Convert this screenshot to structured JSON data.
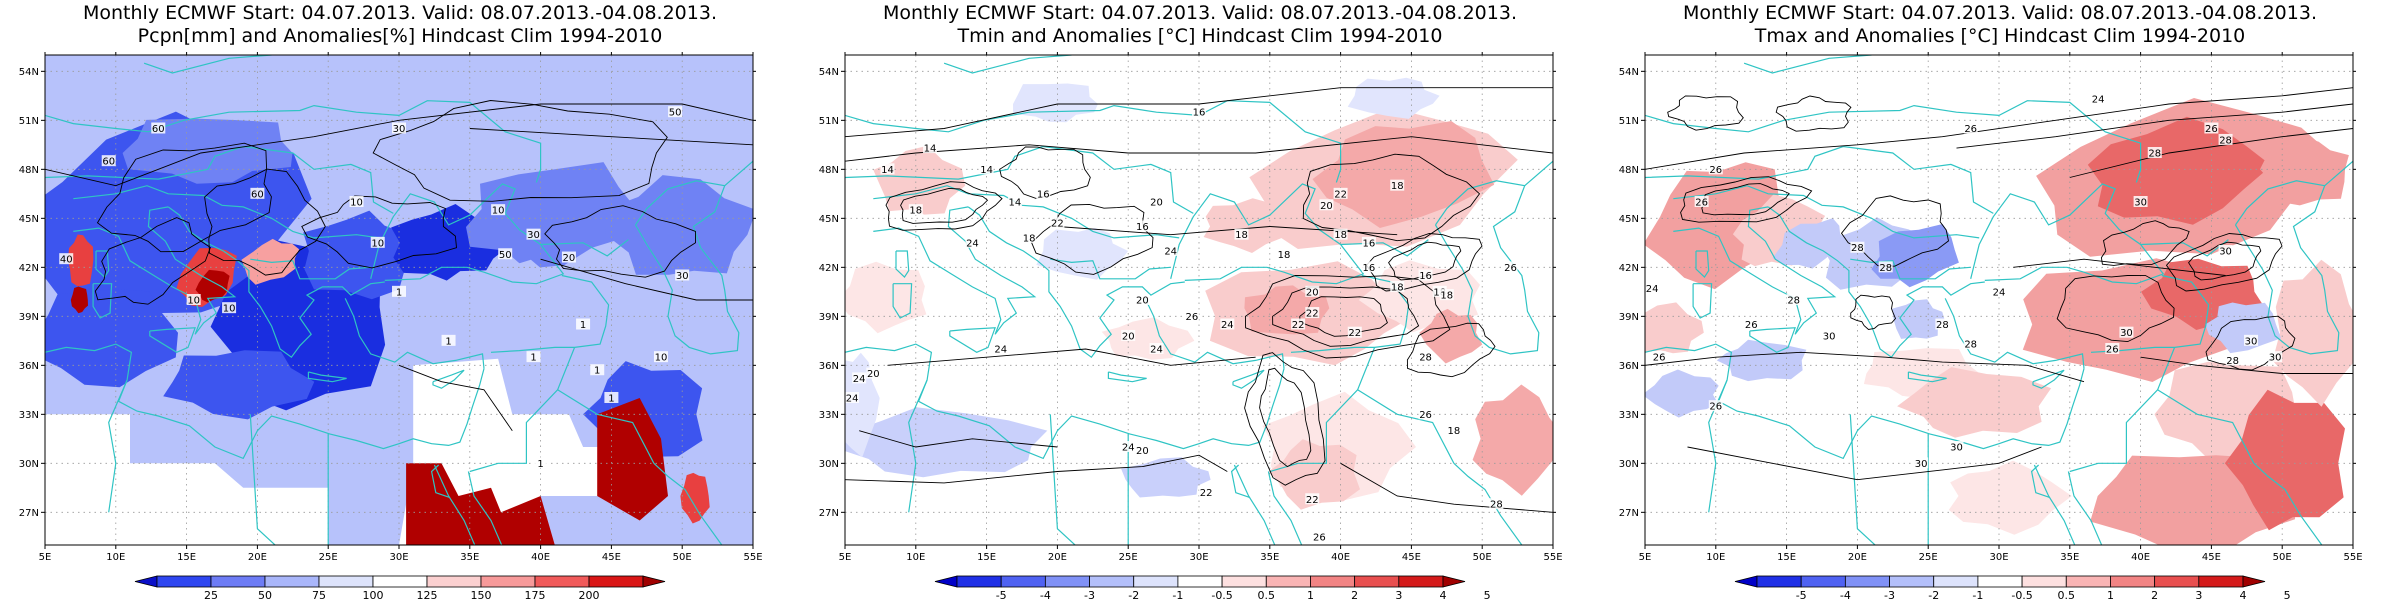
{
  "panels": [
    {
      "title_line1": "Monthly ECMWF Start: 04.07.2013. Valid: 08.07.2013.-04.08.2013.",
      "title_line2": "Pcpn[mm] and Anomalies[%] Hindcast Clim 1994-2010",
      "colorbar": {
        "ticks": [
          "25",
          "50",
          "75",
          "100",
          "125",
          "150",
          "175",
          "200"
        ],
        "colors": [
          "#0a0fc8",
          "#2e46f0",
          "#6d7cf5",
          "#a9b6fa",
          "#dde3fb",
          "#ffffff",
          "#fbd0d0",
          "#f79a9a",
          "#f05a5a",
          "#d91616",
          "#a00000"
        ]
      },
      "contour_labels": [
        "60",
        "50",
        "30",
        "60",
        "60",
        "10",
        "10",
        "10",
        "30",
        "20",
        "50",
        "30",
        "40",
        "10",
        "10",
        "1",
        "1",
        "1",
        "1",
        "1",
        "10",
        "1",
        "1"
      ],
      "anomaly_colors": [
        "#1a2ee0",
        "#3d55ef",
        "#6f82f4",
        "#b7c2fb",
        "#ffffff",
        "#b00000",
        "#e84040",
        "#f7a0a0"
      ]
    },
    {
      "title_line1": "Monthly ECMWF Start: 04.07.2013. Valid: 08.07.2013.-04.08.2013.",
      "title_line2": "Tmin and Anomalies [°C] Hindcast Clim 1994-2010",
      "colorbar": {
        "ticks": [
          "-5",
          "-4",
          "-3",
          "-2",
          "-1",
          "-0.5",
          "0.5",
          "1",
          "2",
          "3",
          "4",
          "5"
        ],
        "colors": [
          "#0000c8",
          "#1f30e6",
          "#4f62f2",
          "#8091f6",
          "#b3bffa",
          "#dde3fc",
          "#ffffff",
          "#fde0e0",
          "#f9b4b4",
          "#f28484",
          "#e84f4f",
          "#d41a1a",
          "#a00000"
        ]
      },
      "contour_labels": [
        "16",
        "18",
        "14",
        "14",
        "14",
        "14",
        "16",
        "18",
        "20",
        "20",
        "22",
        "22",
        "18",
        "16",
        "18",
        "18",
        "24",
        "18",
        "16",
        "18",
        "16",
        "18",
        "26",
        "22",
        "22",
        "24",
        "26",
        "24",
        "16",
        "20",
        "18",
        "24",
        "24",
        "20",
        "20",
        "22",
        "28",
        "18",
        "24",
        "20",
        "22",
        "22",
        "26",
        "26",
        "24",
        "24",
        "28",
        "20"
      ],
      "anomaly_colors": [
        "#f4a9a9",
        "#f9cccc",
        "#fde6e6",
        "#c9d0fb",
        "#e1e5fd"
      ]
    },
    {
      "title_line1": "Monthly ECMWF Start: 04.07.2013. Valid: 08.07.2013.-04.08.2013.",
      "title_line2": "Tmax and Anomalies [°C] Hindcast Clim 1994-2010",
      "colorbar": {
        "ticks": [
          "-5",
          "-4",
          "-3",
          "-2",
          "-1",
          "-0.5",
          "0.5",
          "1",
          "2",
          "3",
          "4",
          "5"
        ],
        "colors": [
          "#0000c8",
          "#1f30e6",
          "#4f62f2",
          "#8091f6",
          "#b3bffa",
          "#dde3fc",
          "#ffffff",
          "#fde0e0",
          "#f9b4b4",
          "#f28484",
          "#e84f4f",
          "#d41a1a",
          "#a00000"
        ]
      },
      "contour_labels": [
        "24",
        "26",
        "26",
        "28",
        "28",
        "30",
        "26",
        "26",
        "28",
        "28",
        "30",
        "24",
        "24",
        "28",
        "28",
        "30",
        "26",
        "30",
        "28",
        "26",
        "30",
        "30",
        "26",
        "26",
        "30",
        "30",
        "28"
      ],
      "anomaly_colors": [
        "#f2a0a0",
        "#e86868",
        "#f9cccc",
        "#fde6e6",
        "#c2caf9",
        "#8a9af5"
      ]
    }
  ],
  "axes": {
    "lon_ticks": [
      "5E",
      "10E",
      "15E",
      "20E",
      "25E",
      "30E",
      "35E",
      "40E",
      "45E",
      "50E",
      "55E"
    ],
    "lat_ticks": [
      "54N",
      "51N",
      "48N",
      "45N",
      "42N",
      "39N",
      "36N",
      "33N",
      "30N",
      "27N"
    ]
  },
  "colors": {
    "coastline": "#2fc4c4",
    "contour": "#000000",
    "grid": "#9a9a9a"
  }
}
